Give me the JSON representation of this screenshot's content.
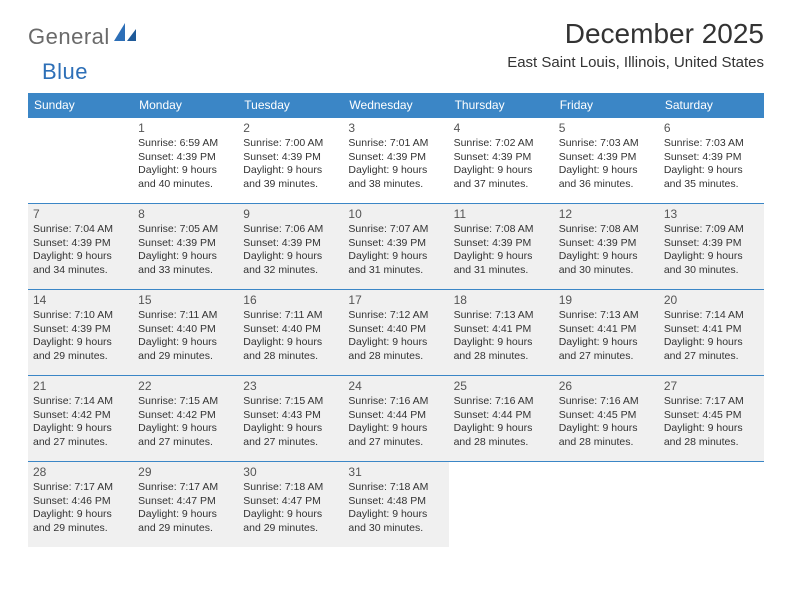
{
  "logo": {
    "part1": "General",
    "part2": "Blue"
  },
  "title": "December 2025",
  "location": "East Saint Louis, Illinois, United States",
  "colors": {
    "header_bg": "#3b86c6",
    "header_text": "#ffffff",
    "rule": "#3b86c6",
    "shaded_bg": "#f0f0f0",
    "body_text": "#333333",
    "logo_gray": "#6a6a6a",
    "logo_blue": "#2d6fb7"
  },
  "weekdays": [
    "Sunday",
    "Monday",
    "Tuesday",
    "Wednesday",
    "Thursday",
    "Friday",
    "Saturday"
  ],
  "weeks": [
    {
      "shaded": false,
      "days": [
        null,
        {
          "n": "1",
          "sunrise": "Sunrise: 6:59 AM",
          "sunset": "Sunset: 4:39 PM",
          "day1": "Daylight: 9 hours",
          "day2": "and 40 minutes."
        },
        {
          "n": "2",
          "sunrise": "Sunrise: 7:00 AM",
          "sunset": "Sunset: 4:39 PM",
          "day1": "Daylight: 9 hours",
          "day2": "and 39 minutes."
        },
        {
          "n": "3",
          "sunrise": "Sunrise: 7:01 AM",
          "sunset": "Sunset: 4:39 PM",
          "day1": "Daylight: 9 hours",
          "day2": "and 38 minutes."
        },
        {
          "n": "4",
          "sunrise": "Sunrise: 7:02 AM",
          "sunset": "Sunset: 4:39 PM",
          "day1": "Daylight: 9 hours",
          "day2": "and 37 minutes."
        },
        {
          "n": "5",
          "sunrise": "Sunrise: 7:03 AM",
          "sunset": "Sunset: 4:39 PM",
          "day1": "Daylight: 9 hours",
          "day2": "and 36 minutes."
        },
        {
          "n": "6",
          "sunrise": "Sunrise: 7:03 AM",
          "sunset": "Sunset: 4:39 PM",
          "day1": "Daylight: 9 hours",
          "day2": "and 35 minutes."
        }
      ]
    },
    {
      "shaded": true,
      "days": [
        {
          "n": "7",
          "sunrise": "Sunrise: 7:04 AM",
          "sunset": "Sunset: 4:39 PM",
          "day1": "Daylight: 9 hours",
          "day2": "and 34 minutes."
        },
        {
          "n": "8",
          "sunrise": "Sunrise: 7:05 AM",
          "sunset": "Sunset: 4:39 PM",
          "day1": "Daylight: 9 hours",
          "day2": "and 33 minutes."
        },
        {
          "n": "9",
          "sunrise": "Sunrise: 7:06 AM",
          "sunset": "Sunset: 4:39 PM",
          "day1": "Daylight: 9 hours",
          "day2": "and 32 minutes."
        },
        {
          "n": "10",
          "sunrise": "Sunrise: 7:07 AM",
          "sunset": "Sunset: 4:39 PM",
          "day1": "Daylight: 9 hours",
          "day2": "and 31 minutes."
        },
        {
          "n": "11",
          "sunrise": "Sunrise: 7:08 AM",
          "sunset": "Sunset: 4:39 PM",
          "day1": "Daylight: 9 hours",
          "day2": "and 31 minutes."
        },
        {
          "n": "12",
          "sunrise": "Sunrise: 7:08 AM",
          "sunset": "Sunset: 4:39 PM",
          "day1": "Daylight: 9 hours",
          "day2": "and 30 minutes."
        },
        {
          "n": "13",
          "sunrise": "Sunrise: 7:09 AM",
          "sunset": "Sunset: 4:39 PM",
          "day1": "Daylight: 9 hours",
          "day2": "and 30 minutes."
        }
      ]
    },
    {
      "shaded": true,
      "days": [
        {
          "n": "14",
          "sunrise": "Sunrise: 7:10 AM",
          "sunset": "Sunset: 4:39 PM",
          "day1": "Daylight: 9 hours",
          "day2": "and 29 minutes."
        },
        {
          "n": "15",
          "sunrise": "Sunrise: 7:11 AM",
          "sunset": "Sunset: 4:40 PM",
          "day1": "Daylight: 9 hours",
          "day2": "and 29 minutes."
        },
        {
          "n": "16",
          "sunrise": "Sunrise: 7:11 AM",
          "sunset": "Sunset: 4:40 PM",
          "day1": "Daylight: 9 hours",
          "day2": "and 28 minutes."
        },
        {
          "n": "17",
          "sunrise": "Sunrise: 7:12 AM",
          "sunset": "Sunset: 4:40 PM",
          "day1": "Daylight: 9 hours",
          "day2": "and 28 minutes."
        },
        {
          "n": "18",
          "sunrise": "Sunrise: 7:13 AM",
          "sunset": "Sunset: 4:41 PM",
          "day1": "Daylight: 9 hours",
          "day2": "and 28 minutes."
        },
        {
          "n": "19",
          "sunrise": "Sunrise: 7:13 AM",
          "sunset": "Sunset: 4:41 PM",
          "day1": "Daylight: 9 hours",
          "day2": "and 27 minutes."
        },
        {
          "n": "20",
          "sunrise": "Sunrise: 7:14 AM",
          "sunset": "Sunset: 4:41 PM",
          "day1": "Daylight: 9 hours",
          "day2": "and 27 minutes."
        }
      ]
    },
    {
      "shaded": true,
      "days": [
        {
          "n": "21",
          "sunrise": "Sunrise: 7:14 AM",
          "sunset": "Sunset: 4:42 PM",
          "day1": "Daylight: 9 hours",
          "day2": "and 27 minutes."
        },
        {
          "n": "22",
          "sunrise": "Sunrise: 7:15 AM",
          "sunset": "Sunset: 4:42 PM",
          "day1": "Daylight: 9 hours",
          "day2": "and 27 minutes."
        },
        {
          "n": "23",
          "sunrise": "Sunrise: 7:15 AM",
          "sunset": "Sunset: 4:43 PM",
          "day1": "Daylight: 9 hours",
          "day2": "and 27 minutes."
        },
        {
          "n": "24",
          "sunrise": "Sunrise: 7:16 AM",
          "sunset": "Sunset: 4:44 PM",
          "day1": "Daylight: 9 hours",
          "day2": "and 27 minutes."
        },
        {
          "n": "25",
          "sunrise": "Sunrise: 7:16 AM",
          "sunset": "Sunset: 4:44 PM",
          "day1": "Daylight: 9 hours",
          "day2": "and 28 minutes."
        },
        {
          "n": "26",
          "sunrise": "Sunrise: 7:16 AM",
          "sunset": "Sunset: 4:45 PM",
          "day1": "Daylight: 9 hours",
          "day2": "and 28 minutes."
        },
        {
          "n": "27",
          "sunrise": "Sunrise: 7:17 AM",
          "sunset": "Sunset: 4:45 PM",
          "day1": "Daylight: 9 hours",
          "day2": "and 28 minutes."
        }
      ]
    },
    {
      "shaded": true,
      "days": [
        {
          "n": "28",
          "sunrise": "Sunrise: 7:17 AM",
          "sunset": "Sunset: 4:46 PM",
          "day1": "Daylight: 9 hours",
          "day2": "and 29 minutes."
        },
        {
          "n": "29",
          "sunrise": "Sunrise: 7:17 AM",
          "sunset": "Sunset: 4:47 PM",
          "day1": "Daylight: 9 hours",
          "day2": "and 29 minutes."
        },
        {
          "n": "30",
          "sunrise": "Sunrise: 7:18 AM",
          "sunset": "Sunset: 4:47 PM",
          "day1": "Daylight: 9 hours",
          "day2": "and 29 minutes."
        },
        {
          "n": "31",
          "sunrise": "Sunrise: 7:18 AM",
          "sunset": "Sunset: 4:48 PM",
          "day1": "Daylight: 9 hours",
          "day2": "and 30 minutes."
        },
        null,
        null,
        null
      ]
    }
  ]
}
